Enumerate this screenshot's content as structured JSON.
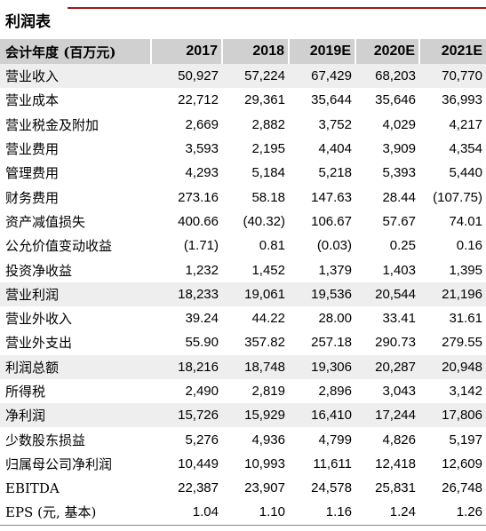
{
  "title": "利润表",
  "table": {
    "header": [
      "会计年度 (百万元)",
      "2017",
      "2018",
      "2019E",
      "2020E",
      "2021E"
    ],
    "rows": [
      [
        "营业收入",
        "50,927",
        "57,224",
        "67,429",
        "68,203",
        "70,770"
      ],
      [
        "营业成本",
        "22,712",
        "29,361",
        "35,644",
        "35,646",
        "36,993"
      ],
      [
        "营业税金及附加",
        "2,669",
        "2,882",
        "3,752",
        "4,029",
        "4,217"
      ],
      [
        "营业费用",
        "3,593",
        "2,195",
        "4,404",
        "3,909",
        "4,354"
      ],
      [
        "管理费用",
        "4,293",
        "5,184",
        "5,218",
        "5,393",
        "5,440"
      ],
      [
        "财务费用",
        "273.16",
        "58.18",
        "147.63",
        "28.44",
        "(107.75)"
      ],
      [
        "资产减值损失",
        "400.66",
        "(40.32)",
        "106.67",
        "57.67",
        "74.01"
      ],
      [
        "公允价值变动收益",
        "(1.71)",
        "0.81",
        "(0.03)",
        "0.25",
        "0.16"
      ],
      [
        "投资净收益",
        "1,232",
        "1,452",
        "1,379",
        "1,403",
        "1,395"
      ],
      [
        "营业利润",
        "18,233",
        "19,061",
        "19,536",
        "20,544",
        "21,196"
      ],
      [
        "营业外收入",
        "39.24",
        "44.22",
        "28.00",
        "33.41",
        "31.61"
      ],
      [
        "营业外支出",
        "55.90",
        "357.82",
        "257.18",
        "290.73",
        "279.55"
      ],
      [
        "利润总额",
        "18,216",
        "18,748",
        "19,306",
        "20,287",
        "20,948"
      ],
      [
        "所得税",
        "2,490",
        "2,819",
        "2,896",
        "3,043",
        "3,142"
      ],
      [
        "净利润",
        "15,726",
        "15,929",
        "16,410",
        "17,244",
        "17,806"
      ],
      [
        "少数股东损益",
        "5,276",
        "4,936",
        "4,799",
        "4,826",
        "5,197"
      ],
      [
        "归属母公司净利润",
        "10,449",
        "10,993",
        "11,611",
        "12,418",
        "12,609"
      ],
      [
        "EBITDA",
        "22,387",
        "23,907",
        "24,578",
        "25,831",
        "26,748"
      ],
      [
        "EPS (元, 基本)",
        "1.04",
        "1.10",
        "1.16",
        "1.24",
        "1.26"
      ]
    ]
  }
}
